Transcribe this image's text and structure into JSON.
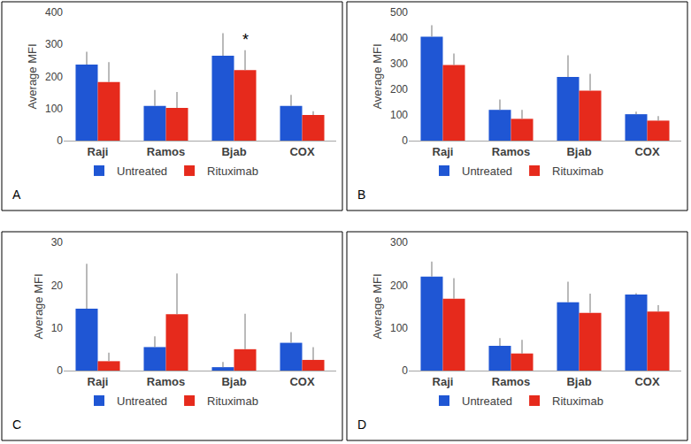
{
  "chart_data": [
    {
      "type": "bar",
      "y_label": "Average MFI",
      "categories": [
        "Raji",
        "Ramos",
        "Bjab",
        "COX"
      ],
      "series": [
        {
          "name": "Untreated",
          "color": "#1f56d4",
          "values": [
            237,
            108,
            265,
            108
          ],
          "error": [
            40,
            50,
            70,
            35
          ]
        },
        {
          "name": "Rituximab",
          "color": "#e62a1c",
          "values": [
            183,
            102,
            220,
            80
          ],
          "error": [
            62,
            50,
            62,
            12
          ]
        }
      ],
      "ylim": [
        0,
        400
      ],
      "yticks": [
        0,
        100,
        200,
        300,
        400
      ],
      "grid": false,
      "legend": "bottom",
      "annotations": [
        {
          "text": "A"
        },
        {
          "text": "*",
          "x": "Bjab",
          "series": "Rituximab"
        }
      ]
    },
    {
      "type": "bar",
      "y_label": "Average MFI",
      "categories": [
        "Raji",
        "Ramos",
        "Bjab",
        "COX"
      ],
      "series": [
        {
          "name": "Untreated",
          "color": "#1f56d4",
          "values": [
            405,
            120,
            248,
            103
          ],
          "error": [
            45,
            40,
            85,
            10
          ]
        },
        {
          "name": "Rituximab",
          "color": "#e62a1c",
          "values": [
            295,
            85,
            195,
            78
          ],
          "error": [
            45,
            35,
            65,
            18
          ]
        }
      ],
      "ylim": [
        0,
        500
      ],
      "yticks": [
        0,
        100,
        200,
        300,
        400,
        500
      ],
      "grid": false,
      "legend": "bottom",
      "annotations": [
        {
          "text": "B"
        }
      ]
    },
    {
      "type": "bar",
      "y_label": "Average MFI",
      "categories": [
        "Raji",
        "Ramos",
        "Bjab",
        "COX"
      ],
      "series": [
        {
          "name": "Untreated",
          "color": "#1f56d4",
          "values": [
            14.5,
            5.5,
            0.8,
            6.5
          ],
          "error": [
            10.5,
            2.5,
            1.2,
            2.5
          ]
        },
        {
          "name": "Rituximab",
          "color": "#e62a1c",
          "values": [
            2.2,
            13.2,
            5,
            2.5
          ],
          "error": [
            2,
            9.5,
            8.3,
            3
          ]
        }
      ],
      "ylim": [
        0,
        30
      ],
      "yticks": [
        0,
        10,
        20,
        30
      ],
      "grid": false,
      "legend": "bottom",
      "annotations": [
        {
          "text": "C"
        }
      ]
    },
    {
      "type": "bar",
      "y_label": "Average MFI",
      "categories": [
        "Raji",
        "Ramos",
        "Bjab",
        "COX"
      ],
      "series": [
        {
          "name": "Untreated",
          "color": "#1f56d4",
          "values": [
            220,
            58,
            160,
            178
          ],
          "error": [
            35,
            18,
            48,
            3
          ]
        },
        {
          "name": "Rituximab",
          "color": "#e62a1c",
          "values": [
            168,
            40,
            135,
            138
          ],
          "error": [
            48,
            32,
            45,
            15
          ]
        }
      ],
      "ylim": [
        0,
        300
      ],
      "yticks": [
        0,
        100,
        200,
        300
      ],
      "grid": false,
      "legend": "bottom",
      "annotations": [
        {
          "text": "D"
        }
      ]
    }
  ]
}
